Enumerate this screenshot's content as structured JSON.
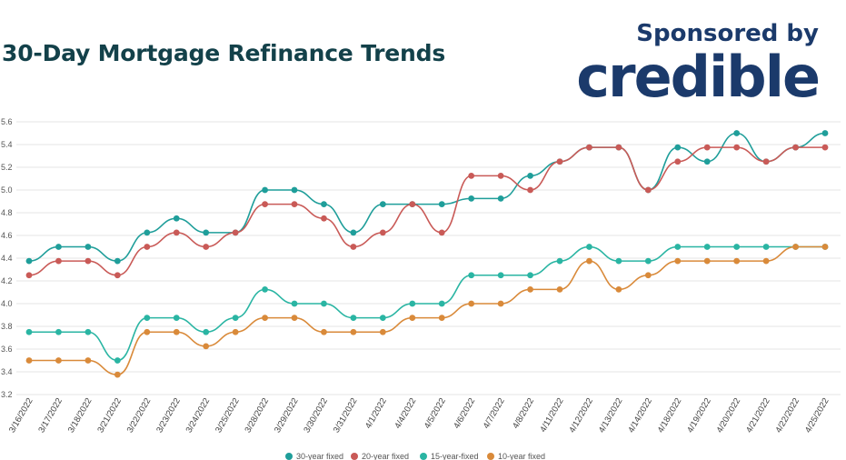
{
  "title": "30-Day Mortgage Refinance Trends",
  "sponsor": {
    "label": "Sponsored by",
    "brand": "credible"
  },
  "chart_data": {
    "type": "line",
    "categories": [
      "3/16/2022",
      "3/17/2022",
      "3/18/2022",
      "3/21/2022",
      "3/22/2022",
      "3/23/2022",
      "3/24/2022",
      "3/25/2022",
      "3/28/2022",
      "3/29/2022",
      "3/30/2022",
      "3/31/2022",
      "4/1/2022",
      "4/4/2022",
      "4/5/2022",
      "4/6/2022",
      "4/7/2022",
      "4/8/2022",
      "4/11/2022",
      "4/12/2022",
      "4/13/2022",
      "4/14/2022",
      "4/18/2022",
      "4/19/2022",
      "4/20/2022",
      "4/21/2022",
      "4/22/2022",
      "4/25/2022"
    ],
    "y_ticks": [
      "3.2",
      "3.4",
      "3.6",
      "3.8",
      "4.0",
      "4.2",
      "4.4",
      "4.6",
      "4.8",
      "5.0",
      "5.2",
      "5.4",
      "5.6"
    ],
    "ylim": [
      3.2,
      5.6
    ],
    "grid": true,
    "legend_position": "bottom",
    "series": [
      {
        "name": "30-year fixed",
        "color": "#1f9e9a",
        "values": [
          4.375,
          4.5,
          4.5,
          4.375,
          4.625,
          4.75,
          4.625,
          4.625,
          5.0,
          5.0,
          4.875,
          4.625,
          4.875,
          4.875,
          4.875,
          4.925,
          4.925,
          5.125,
          5.25,
          5.375,
          5.375,
          5.0,
          5.375,
          5.25,
          5.5,
          5.25,
          5.375,
          5.5
        ]
      },
      {
        "name": "20-year fixed",
        "color": "#c95a57",
        "values": [
          4.25,
          4.375,
          4.375,
          4.25,
          4.5,
          4.625,
          4.5,
          4.625,
          4.875,
          4.875,
          4.75,
          4.5,
          4.625,
          4.875,
          4.625,
          5.125,
          5.125,
          5.0,
          5.25,
          5.375,
          5.375,
          5.0,
          5.25,
          5.375,
          5.375,
          5.25,
          5.375,
          5.375
        ]
      },
      {
        "name": "15-year-fixed",
        "color": "#2ab5a3",
        "values": [
          3.75,
          3.75,
          3.75,
          3.5,
          3.875,
          3.875,
          3.75,
          3.875,
          4.125,
          4.0,
          4.0,
          3.875,
          3.875,
          4.0,
          4.0,
          4.25,
          4.25,
          4.25,
          4.375,
          4.5,
          4.375,
          4.375,
          4.5,
          4.5,
          4.5,
          4.5,
          4.5,
          4.5
        ]
      },
      {
        "name": "10-year fixed",
        "color": "#d98a3a",
        "values": [
          3.5,
          3.5,
          3.5,
          3.375,
          3.75,
          3.75,
          3.625,
          3.75,
          3.875,
          3.875,
          3.75,
          3.75,
          3.75,
          3.875,
          3.875,
          4.0,
          4.0,
          4.125,
          4.125,
          4.375,
          4.125,
          4.25,
          4.375,
          4.375,
          4.375,
          4.375,
          4.5,
          4.5
        ]
      }
    ]
  }
}
